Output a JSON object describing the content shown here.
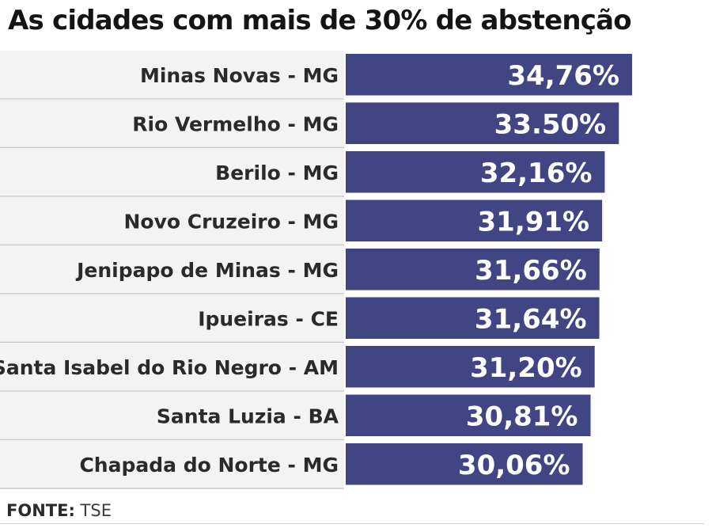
{
  "colors": {
    "bar": "#414583",
    "row_background": "#f3f3f3",
    "row_divider": "#c9c9c9",
    "title": "#141414"
  },
  "chart_data": {
    "type": "bar",
    "orientation": "horizontal",
    "title": "As cidades com mais de 30% de abstenção",
    "categories": [
      "Minas Novas - MG",
      "Rio Vermelho - MG",
      "Berilo - MG",
      "Novo Cruzeiro - MG",
      "Jenipapo de Minas - MG",
      "Ipueiras - CE",
      "Santa Isabel do Rio Negro - AM",
      "Santa Luzia - BA",
      "Chapada do Norte - MG"
    ],
    "values": [
      34.76,
      33.5,
      32.16,
      31.91,
      31.66,
      31.64,
      31.2,
      30.81,
      30.06
    ],
    "value_labels": [
      "34,76%",
      "33.50%",
      "32,16%",
      "31,91%",
      "31,66%",
      "31,64%",
      "31,20%",
      "30,81%",
      "30,06%"
    ],
    "unit": "%",
    "xlabel": "",
    "ylabel": "",
    "grid": false,
    "legend": "none"
  },
  "source": {
    "label": "FONTE:",
    "value": "TSE"
  }
}
